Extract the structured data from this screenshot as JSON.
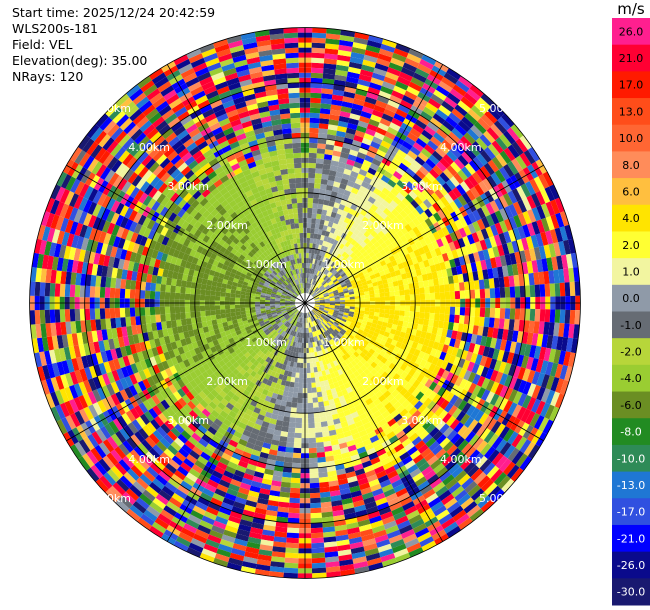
{
  "info": {
    "start_time": "Start time: 2025/12/24 20:42:59",
    "site": "WLS200s-181",
    "field": "Field: VEL",
    "elevation": "Elevation(deg): 35.00",
    "nrays": "NRays: 120"
  },
  "colorbar": {
    "unit": "m/s",
    "ticks": [
      "26.0",
      "21.0",
      "17.0",
      "13.0",
      "10.0",
      "8.0",
      "6.0",
      "4.0",
      "2.0",
      "1.0",
      "0.0",
      "-1.0",
      "-2.0",
      "-4.0",
      "-6.0",
      "-8.0",
      "-10.0",
      "-13.0",
      "-17.0",
      "-21.0",
      "-26.0",
      "-30.0"
    ],
    "colors": [
      "#ff1f8f",
      "#ff0033",
      "#ff1a00",
      "#ff4d1a",
      "#ff6633",
      "#ff8c5a",
      "#ffbf3f",
      "#ffe400",
      "#ffff33",
      "#f2f5a0",
      "#8f9aa8",
      "#666c74",
      "#b7d63a",
      "#9acd32",
      "#6b8e23",
      "#228b22",
      "#2e8b57",
      "#1f77d4",
      "#3050e0",
      "#0000ff",
      "#0a0a8c",
      "#191970"
    ],
    "tick_colors": [
      "#000000",
      "#000000",
      "#000000",
      "#000000",
      "#000000",
      "#000000",
      "#000000",
      "#000000",
      "#000000",
      "#000000",
      "#000000",
      "#000000",
      "#000000",
      "#000000",
      "#000000",
      "#ffffff",
      "#ffffff",
      "#ffffff",
      "#ffffff",
      "#ffffff",
      "#ffffff",
      "#ffffff"
    ]
  },
  "chart_data": {
    "type": "ppi",
    "field": "VEL",
    "units": "m/s",
    "elevation_deg": 35.0,
    "n_rays": 120,
    "range_rings_km": [
      1,
      2,
      3,
      4,
      5
    ],
    "range_labels": [
      "1.00km",
      "2.00km",
      "3.00km",
      "4.00km",
      "5.00km"
    ],
    "max_range_km": 5.0,
    "spoke_angles_deg": [
      0,
      30,
      60,
      90,
      120,
      150,
      180,
      210,
      240,
      270,
      300,
      330
    ],
    "vmin": -30.0,
    "vmax": 30.0
  }
}
